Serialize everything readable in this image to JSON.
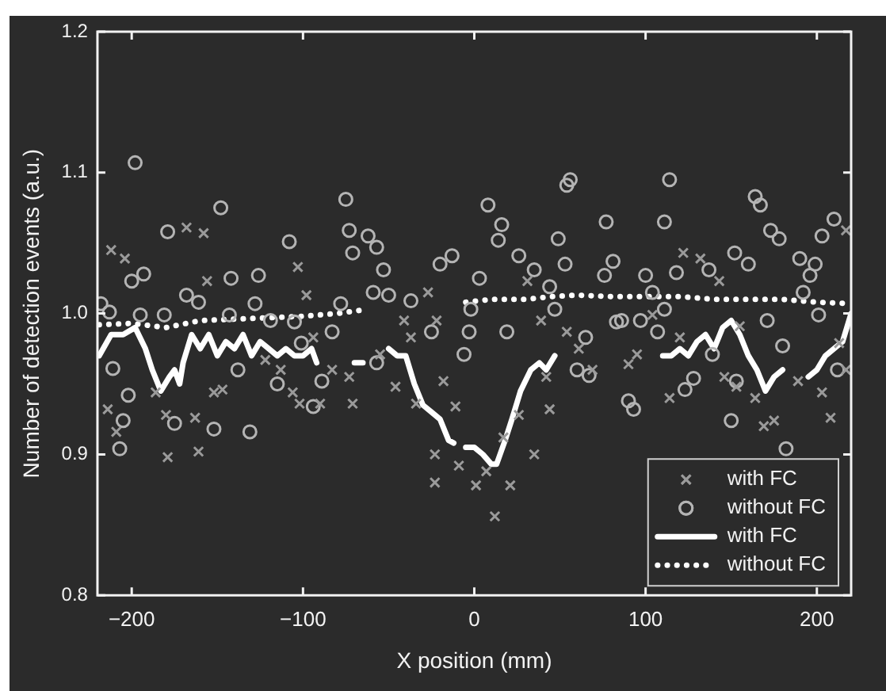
{
  "chart_data": {
    "type": "scatter",
    "xlabel": "X position (mm)",
    "ylabel": "Number of detection events (a.u.)",
    "xlim": [
      -220,
      220
    ],
    "xticks": [
      {
        "value": -200,
        "label": "−200"
      },
      {
        "value": -100,
        "label": "−100"
      },
      0,
      100,
      200
    ],
    "ylim": [
      0.8,
      1.2
    ],
    "yticks": [
      0.8,
      0.9,
      {
        "value": 1,
        "label": "1.0"
      },
      1.1,
      1.2
    ],
    "grid": false,
    "legend": "bottom right",
    "series": [
      {
        "name": "with FC",
        "color": "#9a9a9a",
        "marker": "cross",
        "x": [
          -212,
          -204,
          -168,
          -158,
          -156,
          -103,
          -98,
          -214,
          -209,
          -179,
          -161,
          -163,
          -186,
          -180,
          -152,
          -147,
          -122,
          -113,
          -106,
          -102,
          -90,
          -83,
          -94,
          -73,
          -71,
          -55,
          -46,
          -41,
          -37,
          -34,
          -27,
          -22,
          -18,
          -23,
          -23,
          -11,
          -9,
          1,
          7,
          12,
          17,
          21,
          26,
          31,
          35,
          39,
          42,
          44,
          54,
          61,
          69,
          90,
          95,
          104,
          114,
          120,
          122,
          132,
          143,
          146,
          153,
          155,
          164,
          169,
          175,
          189,
          203,
          208,
          217,
          213,
          217
        ],
        "values": [
          1.045,
          1.039,
          1.061,
          1.057,
          1.023,
          1.033,
          1.013,
          0.932,
          0.916,
          0.898,
          0.902,
          0.926,
          0.944,
          0.928,
          0.944,
          0.946,
          0.967,
          0.96,
          0.944,
          0.936,
          0.936,
          0.96,
          0.983,
          0.955,
          0.936,
          0.971,
          0.948,
          0.995,
          0.983,
          0.936,
          1.015,
          0.995,
          0.952,
          0.9,
          0.88,
          0.934,
          0.892,
          0.878,
          0.888,
          0.856,
          0.912,
          0.878,
          0.928,
          1.023,
          0.9,
          0.995,
          0.955,
          0.932,
          0.987,
          0.975,
          0.96,
          0.964,
          0.971,
          0.999,
          0.94,
          0.983,
          1.043,
          1.039,
          1.023,
          0.955,
          0.948,
          0.991,
          0.94,
          0.92,
          0.924,
          0.952,
          0.944,
          0.926,
          1.059,
          0.979,
          0.96
        ]
      },
      {
        "name": "without FC",
        "color": "#b4b4b4",
        "marker": "circle",
        "x": [
          -198,
          -200,
          -193,
          -218,
          -213,
          -211,
          -202,
          -205,
          -207,
          -195,
          -179,
          -181,
          -175,
          -168,
          -161,
          -152,
          -148,
          -142,
          -143,
          -138,
          -131,
          -126,
          -128,
          -119,
          -115,
          -108,
          -105,
          -101,
          -94,
          -89,
          -83,
          -78,
          -75,
          -73,
          -71,
          -62,
          -57,
          -59,
          -53,
          -57,
          -50,
          -37,
          -25,
          -20,
          -13,
          -6,
          -3,
          3,
          -2,
          8,
          16,
          14,
          19,
          26,
          35,
          44,
          47,
          49,
          54,
          56,
          53,
          60,
          67,
          65,
          77,
          76,
          81,
          83,
          86,
          90,
          93,
          97,
          100,
          104,
          107,
          111,
          114,
          111,
          118,
          123,
          128,
          137,
          139,
          150,
          152,
          153,
          160,
          164,
          167,
          173,
          178,
          171,
          182,
          180,
          190,
          196,
          192,
          199,
          201,
          203,
          210,
          212
        ],
        "values": [
          1.107,
          1.023,
          1.028,
          1.007,
          1.001,
          0.961,
          0.942,
          0.924,
          0.904,
          0.999,
          1.058,
          0.999,
          0.922,
          1.013,
          1.008,
          0.918,
          1.075,
          1.025,
          0.999,
          0.96,
          0.916,
          1.027,
          1.007,
          0.995,
          0.95,
          1.051,
          0.994,
          0.979,
          0.934,
          0.952,
          0.987,
          1.007,
          1.081,
          1.059,
          1.043,
          1.055,
          1.047,
          1.015,
          1.031,
          0.965,
          1.013,
          1.009,
          0.987,
          1.035,
          1.041,
          0.971,
          0.987,
          1.025,
          1.003,
          1.077,
          1.063,
          1.052,
          0.987,
          1.041,
          1.031,
          1.019,
          1.003,
          1.053,
          1.091,
          1.095,
          1.035,
          0.96,
          0.956,
          0.983,
          1.065,
          1.027,
          1.037,
          0.994,
          0.995,
          0.938,
          0.932,
          0.995,
          1.027,
          1.015,
          0.987,
          1.065,
          1.095,
          1.003,
          1.029,
          0.946,
          0.954,
          1.031,
          0.971,
          0.924,
          1.043,
          0.952,
          1.035,
          1.083,
          1.077,
          1.059,
          1.053,
          0.995,
          0.904,
          0.977,
          1.039,
          1.027,
          1.015,
          1.035,
          0.999,
          1.055,
          1.067,
          0.96
        ]
      },
      {
        "type": "line",
        "name": "with FC",
        "color": "#ffffff",
        "marker": "none",
        "line_style": "solid",
        "x": [
          -219,
          -212,
          -205,
          -198,
          -192,
          -188,
          -183,
          -178,
          -175,
          -172,
          -170,
          -165,
          -160,
          -155,
          -150,
          -145,
          -140,
          -135,
          -130,
          -125,
          -120,
          -115,
          -110,
          -105,
          -100,
          -95,
          -92,
          -80,
          -70,
          -65,
          -58,
          -50,
          -45,
          -40,
          -35,
          -30,
          -25,
          -20,
          -15,
          -12,
          -8,
          -5,
          0,
          5,
          10,
          13,
          18,
          22,
          27,
          33,
          38,
          42,
          47,
          80,
          110,
          115,
          120,
          125,
          130,
          135,
          140,
          145,
          150,
          155,
          160,
          165,
          170,
          175,
          180,
          188,
          195,
          200,
          205,
          210,
          215,
          220
        ],
        "values": [
          0.97,
          0.985,
          0.985,
          0.99,
          0.975,
          0.96,
          0.945,
          0.955,
          0.96,
          0.95,
          0.965,
          0.985,
          0.975,
          0.985,
          0.97,
          0.98,
          0.975,
          0.985,
          0.97,
          0.98,
          0.975,
          0.97,
          0.975,
          0.97,
          0.97,
          0.975,
          0.965,
          null,
          0.965,
          0.965,
          null,
          0.975,
          0.97,
          0.97,
          0.95,
          0.935,
          0.93,
          0.925,
          0.91,
          0.908,
          null,
          0.905,
          0.905,
          0.9,
          0.893,
          0.893,
          0.91,
          0.925,
          0.945,
          0.96,
          0.965,
          0.96,
          0.97,
          null,
          0.97,
          0.97,
          0.975,
          0.97,
          0.98,
          0.985,
          0.975,
          0.99,
          0.995,
          0.985,
          0.97,
          0.96,
          0.945,
          0.955,
          0.96,
          null,
          0.955,
          0.96,
          0.97,
          0.975,
          0.98,
          1.0
        ]
      },
      {
        "type": "line",
        "name": "without FC",
        "color": "#ffffff",
        "marker": "none",
        "line_style": "dotted",
        "x": [
          -219,
          -200,
          -180,
          -160,
          -140,
          -120,
          -100,
          -80,
          -62,
          -30,
          -5,
          10,
          30,
          45,
          60,
          80,
          100,
          120,
          140,
          160,
          180,
          200,
          220
        ],
        "values": [
          0.992,
          0.993,
          0.99,
          0.995,
          0.996,
          0.997,
          0.998,
          1.0,
          1.003,
          null,
          1.008,
          1.01,
          1.01,
          1.012,
          1.013,
          1.012,
          1.012,
          1.012,
          1.01,
          1.01,
          1.01,
          1.008,
          1.007
        ]
      }
    ]
  }
}
